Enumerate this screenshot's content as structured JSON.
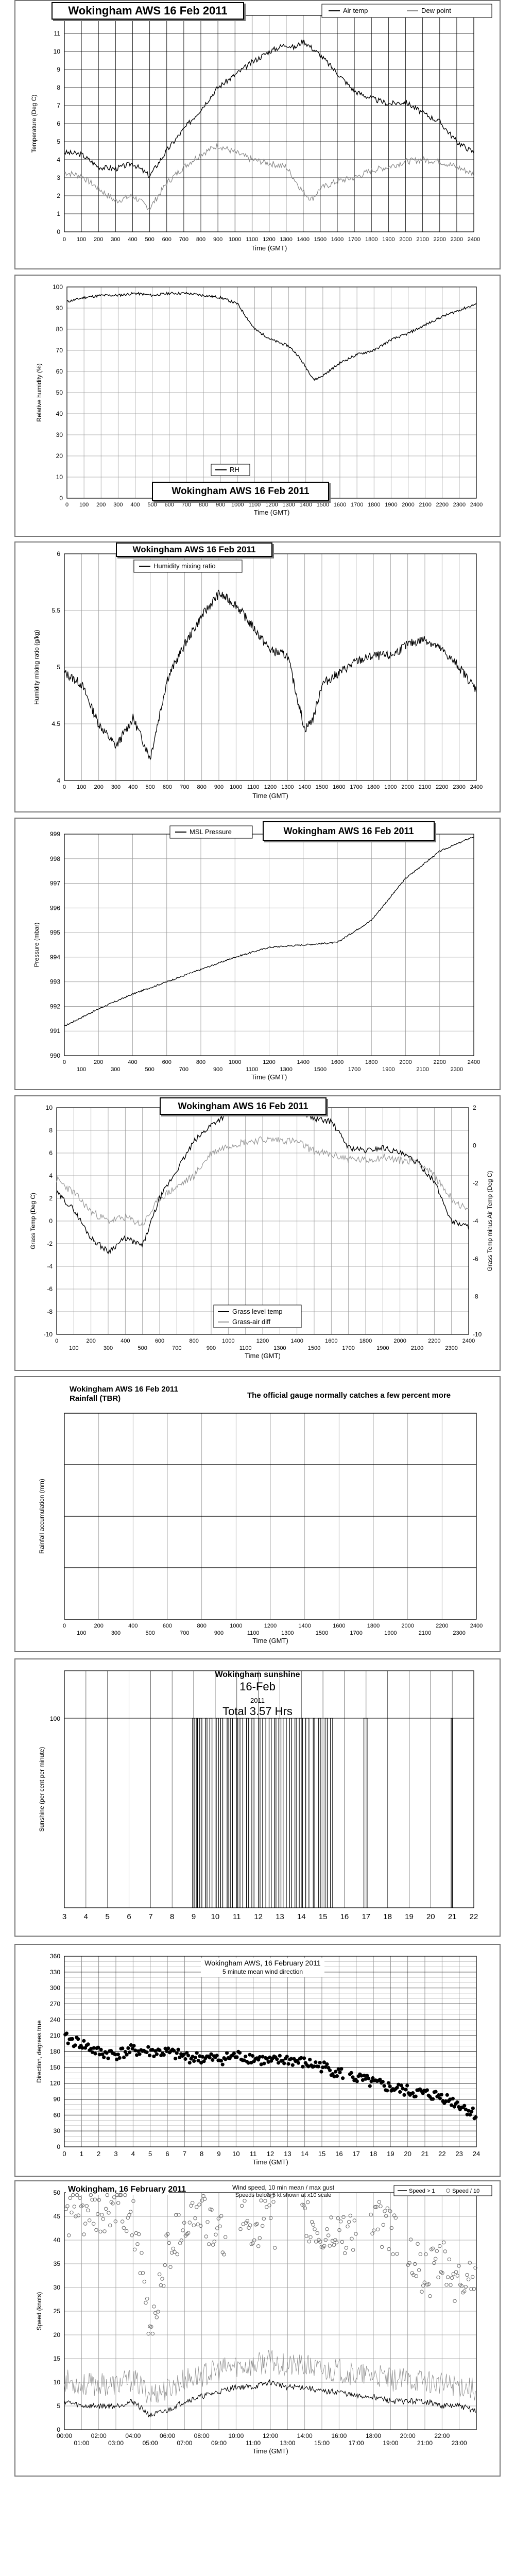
{
  "chart_data": [
    {
      "type": "line",
      "title": "Wokingham AWS 16 Feb 2011",
      "xlabel": "Time (GMT)",
      "ylabel": "Temperature (Deg C)",
      "xlim": [
        0,
        2400
      ],
      "ylim": [
        0,
        12
      ],
      "x_ticks": [
        "0",
        "100",
        "200",
        "300",
        "400",
        "500",
        "600",
        "700",
        "800",
        "900",
        "1000",
        "1100",
        "1200",
        "1300",
        "1400",
        "1500",
        "1600",
        "1700",
        "1800",
        "1900",
        "2000",
        "2100",
        "2200",
        "2300",
        "2400"
      ],
      "y_ticks": [
        "0",
        "1",
        "2",
        "3",
        "4",
        "5",
        "6",
        "7",
        "8",
        "9",
        "10",
        "11",
        "12"
      ],
      "legend": "top-right",
      "series": [
        {
          "name": "Air temp",
          "color": "#000000",
          "x": [
            0,
            100,
            200,
            300,
            400,
            500,
            600,
            700,
            800,
            900,
            1000,
            1100,
            1200,
            1300,
            1350,
            1400,
            1500,
            1600,
            1700,
            1800,
            1900,
            2000,
            2100,
            2200,
            2300,
            2400
          ],
          "y": [
            4.4,
            4.3,
            3.6,
            3.5,
            3.8,
            3.1,
            4.5,
            5.7,
            6.8,
            8.0,
            8.7,
            9.4,
            10.0,
            10.4,
            10.2,
            10.6,
            9.8,
            8.8,
            7.8,
            7.4,
            7.1,
            7.2,
            6.6,
            6.1,
            5.0,
            4.4
          ]
        },
        {
          "name": "Dew point",
          "color": "#888888",
          "x": [
            0,
            100,
            200,
            300,
            400,
            500,
            600,
            700,
            800,
            900,
            1000,
            1100,
            1200,
            1300,
            1400,
            1450,
            1500,
            1600,
            1700,
            1800,
            1900,
            2000,
            2100,
            2200,
            2300,
            2400
          ],
          "y": [
            3.3,
            3.1,
            2.4,
            1.7,
            2.0,
            1.3,
            2.7,
            3.6,
            4.3,
            4.8,
            4.4,
            4.0,
            3.8,
            3.6,
            2.2,
            1.8,
            2.4,
            2.8,
            3.0,
            3.4,
            3.6,
            3.9,
            4.0,
            3.9,
            3.6,
            3.2
          ]
        }
      ]
    },
    {
      "type": "line",
      "title": "Wokingham AWS 16 Feb 2011",
      "xlabel": "Time (GMT)",
      "ylabel": "Relative humidity (%)",
      "xlim": [
        0,
        2400
      ],
      "ylim": [
        0,
        100
      ],
      "x_ticks": [
        "0",
        "100",
        "200",
        "300",
        "400",
        "500",
        "600",
        "700",
        "800",
        "900",
        "1000",
        "1100",
        "1200",
        "1300",
        "1400",
        "1500",
        "1600",
        "1700",
        "1800",
        "1900",
        "2000",
        "2100",
        "2200",
        "2300",
        "2400"
      ],
      "y_ticks": [
        "0",
        "10",
        "20",
        "30",
        "40",
        "50",
        "60",
        "70",
        "80",
        "90",
        "100"
      ],
      "legend": "bottom-left",
      "series": [
        {
          "name": "RH",
          "color": "#000000",
          "x": [
            0,
            100,
            200,
            300,
            400,
            500,
            600,
            700,
            800,
            900,
            1000,
            1100,
            1200,
            1300,
            1350,
            1400,
            1450,
            1500,
            1600,
            1700,
            1800,
            1900,
            2000,
            2100,
            2200,
            2300,
            2400
          ],
          "y": [
            93,
            95,
            96,
            96,
            97,
            96,
            97,
            97,
            96,
            95,
            92,
            80,
            75,
            72,
            68,
            62,
            56,
            58,
            64,
            68,
            70,
            75,
            78,
            82,
            86,
            89,
            92
          ]
        }
      ]
    },
    {
      "type": "line",
      "title": "Wokingham AWS 16 Feb 2011",
      "xlabel": "Time (GMT)",
      "ylabel": "Humidity mixing ratio (g/kg)",
      "xlim": [
        0,
        2400
      ],
      "ylim": [
        4,
        6
      ],
      "x_ticks": [
        "0",
        "100",
        "200",
        "300",
        "400",
        "500",
        "600",
        "700",
        "800",
        "900",
        "1000",
        "1100",
        "1200",
        "1300",
        "1400",
        "1500",
        "1600",
        "1700",
        "1800",
        "1900",
        "2000",
        "2100",
        "2200",
        "2300",
        "2400"
      ],
      "y_ticks": [
        "4",
        "4.5",
        "5",
        "5.5",
        "6"
      ],
      "y_tick_values": [
        4,
        4.5,
        5,
        5.5,
        6
      ],
      "legend": "top-left",
      "series": [
        {
          "name": "Humidity mixing ratio",
          "color": "#000000",
          "x": [
            0,
            100,
            200,
            300,
            400,
            500,
            600,
            700,
            800,
            900,
            1000,
            1100,
            1200,
            1300,
            1400,
            1450,
            1500,
            1600,
            1700,
            1800,
            1900,
            2000,
            2100,
            2200,
            2300,
            2400
          ],
          "y": [
            4.95,
            4.85,
            4.5,
            4.3,
            4.55,
            4.2,
            4.9,
            5.2,
            5.45,
            5.65,
            5.55,
            5.35,
            5.15,
            5.1,
            4.45,
            4.55,
            4.85,
            4.95,
            5.05,
            5.1,
            5.1,
            5.2,
            5.25,
            5.15,
            5.0,
            4.8
          ]
        }
      ]
    },
    {
      "type": "line",
      "title": "Wokingham AWS 16 Feb 2011",
      "xlabel": "Time (GMT)",
      "ylabel": "Pressure (mbar)",
      "xlim": [
        0,
        2400
      ],
      "ylim": [
        990,
        999
      ],
      "x_ticks_major": [
        "0",
        "200",
        "400",
        "600",
        "800",
        "1000",
        "1200",
        "1400",
        "1600",
        "1800",
        "2000",
        "2200",
        "2400"
      ],
      "x_ticks_minor": [
        "100",
        "300",
        "500",
        "700",
        "900",
        "1100",
        "1300",
        "1500",
        "1700",
        "1900",
        "2100",
        "2300"
      ],
      "y_ticks": [
        "990",
        "991",
        "992",
        "993",
        "994",
        "995",
        "996",
        "997",
        "998",
        "999"
      ],
      "legend": "top-left",
      "series": [
        {
          "name": "MSL Pressure",
          "color": "#000000",
          "x": [
            0,
            200,
            400,
            600,
            800,
            1000,
            1200,
            1400,
            1600,
            1800,
            2000,
            2200,
            2400
          ],
          "y": [
            991.2,
            991.9,
            992.5,
            993.0,
            993.5,
            994.0,
            994.4,
            994.5,
            994.6,
            995.5,
            997.2,
            998.3,
            998.9
          ]
        }
      ]
    },
    {
      "type": "line",
      "title": "Wokingham AWS 16 Feb 2011",
      "xlabel": "Time (GMT)",
      "ylabel": "Grass Temp (Deg C)",
      "y2label": "Grass Temp minus Air Temp (Deg C)",
      "xlim": [
        0,
        2400
      ],
      "ylim": [
        -10,
        10
      ],
      "y2lim": [
        -10,
        2
      ],
      "x_ticks_major": [
        "0",
        "200",
        "400",
        "600",
        "800",
        "1000",
        "1200",
        "1400",
        "1600",
        "1800",
        "2000",
        "2200",
        "2400"
      ],
      "x_ticks_minor": [
        "100",
        "300",
        "500",
        "700",
        "900",
        "1100",
        "1300",
        "1500",
        "1700",
        "1900",
        "2100",
        "2300"
      ],
      "y_ticks": [
        "-10",
        "-8",
        "-6",
        "-4",
        "-2",
        "0",
        "2",
        "4",
        "6",
        "8",
        "10"
      ],
      "y2_ticks": [
        "-10",
        "-8",
        "-6",
        "-4",
        "-2",
        "0",
        "2"
      ],
      "legend": "bottom-right",
      "series": [
        {
          "name": "Grass level temp",
          "color": "#000000",
          "axis": "left",
          "x": [
            0,
            100,
            200,
            300,
            400,
            500,
            600,
            700,
            800,
            900,
            1000,
            1100,
            1200,
            1300,
            1400,
            1500,
            1600,
            1700,
            1800,
            1900,
            2000,
            2100,
            2200,
            2300,
            2400
          ],
          "y": [
            2.5,
            1.0,
            -1.5,
            -2.7,
            -1.5,
            -2.2,
            2.0,
            4.5,
            7.0,
            8.5,
            9.5,
            10.0,
            10.0,
            10.0,
            10.0,
            9.0,
            8.8,
            6.5,
            6.2,
            6.5,
            6.0,
            5.2,
            3.5,
            0.0,
            -0.5
          ]
        },
        {
          "name": "Grass-air diff",
          "color": "#999999",
          "axis": "right",
          "x": [
            0,
            100,
            200,
            300,
            400,
            500,
            600,
            700,
            800,
            900,
            1000,
            1100,
            1200,
            1300,
            1400,
            1500,
            1600,
            1700,
            1800,
            1900,
            2000,
            2100,
            2200,
            2300,
            2400
          ],
          "y": [
            -1.8,
            -2.5,
            -3.5,
            -4.0,
            -3.8,
            -4.2,
            -2.8,
            -2.2,
            -1.6,
            -0.4,
            0.0,
            0.2,
            0.3,
            0.3,
            0.2,
            -0.3,
            -0.5,
            -0.7,
            -0.8,
            -0.6,
            -0.8,
            -0.8,
            -1.6,
            -2.8,
            -3.5
          ]
        }
      ]
    },
    {
      "type": "line",
      "title": "Wokingham AWS 16 Feb 2011",
      "subtitle": "Rainfall (TBR)",
      "annotation": "The official gauge normally catches a few percent more",
      "xlabel": "Time (GMT)",
      "ylabel": "Rainfall accumulation (mm)",
      "xlim": [
        0,
        2400
      ],
      "y_gridlines": 4,
      "x_ticks_major": [
        "0",
        "200",
        "400",
        "600",
        "800",
        "1000",
        "1200",
        "1400",
        "1600",
        "1800",
        "2000",
        "2200",
        "2400"
      ],
      "x_ticks_minor": [
        "100",
        "300",
        "500",
        "700",
        "900",
        "1100",
        "1300",
        "1500",
        "1700",
        "1900",
        "2100",
        "2300"
      ],
      "series": []
    },
    {
      "type": "line",
      "title": "Wokingham sunshine",
      "subtitle": "16-Feb",
      "year": "2011",
      "total": "Total 3.57 Hrs",
      "ylabel": "Sunshine (per cent per minute)",
      "xlim": [
        3,
        22
      ],
      "ylim": [
        0,
        100
      ],
      "x_ticks": [
        "3",
        "4",
        "5",
        "6",
        "7",
        "8",
        "9",
        "10",
        "11",
        "12",
        "13",
        "14",
        "15",
        "16",
        "17",
        "18",
        "19",
        "20",
        "21",
        "22"
      ],
      "y_ticks": [
        "100"
      ],
      "sun_periods_hours": [
        [
          8.95,
          9.05
        ],
        [
          9.12,
          9.18
        ],
        [
          9.28,
          9.38
        ],
        [
          9.55,
          9.62
        ],
        [
          9.75,
          9.85
        ],
        [
          10.05,
          10.15
        ],
        [
          10.25,
          10.35
        ],
        [
          10.55,
          10.6
        ],
        [
          10.7,
          10.8
        ],
        [
          11.0,
          11.05
        ],
        [
          11.15,
          11.28
        ],
        [
          11.45,
          11.55
        ],
        [
          11.7,
          11.8
        ],
        [
          12.0,
          12.08
        ],
        [
          12.2,
          12.35
        ],
        [
          12.5,
          12.6
        ],
        [
          12.75,
          12.82
        ],
        [
          12.95,
          13.05
        ],
        [
          13.15,
          13.3
        ],
        [
          13.45,
          13.55
        ],
        [
          13.7,
          13.78
        ],
        [
          13.9,
          14.05
        ],
        [
          14.2,
          14.35
        ],
        [
          14.55,
          14.62
        ],
        [
          14.8,
          14.9
        ],
        [
          15.1,
          15.2
        ],
        [
          15.35,
          15.45
        ],
        [
          16.9,
          17.05
        ],
        [
          20.95,
          21.02
        ]
      ]
    },
    {
      "type": "scatter",
      "title": "Wokingham AWS,  16 February 2011",
      "subtitle": "5 minute mean wind direction",
      "xlabel": "Time (GMT)",
      "ylabel": "Direction, degrees true",
      "xlim": [
        0,
        24
      ],
      "ylim": [
        0,
        360
      ],
      "x_ticks": [
        "0",
        "1",
        "2",
        "3",
        "4",
        "5",
        "6",
        "7",
        "8",
        "9",
        "10",
        "11",
        "12",
        "13",
        "14",
        "15",
        "16",
        "17",
        "18",
        "19",
        "20",
        "21",
        "22",
        "23",
        "24"
      ],
      "y_ticks": [
        "0",
        "30",
        "60",
        "90",
        "120",
        "150",
        "180",
        "210",
        "240",
        "270",
        "300",
        "330",
        "360"
      ],
      "y_tick_values": [
        0,
        30,
        60,
        90,
        120,
        150,
        180,
        210,
        240,
        270,
        300,
        330,
        360
      ],
      "series": [
        {
          "name": "",
          "color": "#000000",
          "x": [
            0,
            1,
            2,
            3,
            4,
            5,
            6,
            7,
            8,
            9,
            10,
            11,
            12,
            13,
            14,
            15,
            16,
            17,
            18,
            19,
            20,
            21,
            22,
            23,
            24
          ],
          "y": [
            205,
            195,
            178,
            175,
            182,
            180,
            178,
            170,
            168,
            165,
            172,
            168,
            160,
            165,
            158,
            152,
            140,
            130,
            120,
            112,
            105,
            100,
            95,
            80,
            60
          ]
        }
      ]
    },
    {
      "type": "line",
      "title": "Wokingham,  16 February 2011",
      "subtitle": "Wind speed, 10 min mean / max gust",
      "note": "Speeds below 5 kt shown at x10 scale",
      "xlabel": "Time (GMT)",
      "ylabel": "Speed (knots)",
      "xlim": [
        0,
        24
      ],
      "ylim": [
        0,
        50
      ],
      "x_ticks_major": [
        "00:00",
        "02:00",
        "04:00",
        "06:00",
        "08:00",
        "10:00",
        "12:00",
        "14:00",
        "16:00",
        "18:00",
        "20:00",
        "22:00"
      ],
      "x_ticks_minor": [
        "01:00",
        "03:00",
        "05:00",
        "07:00",
        "09:00",
        "11:00",
        "13:00",
        "15:00",
        "17:00",
        "19:00",
        "21:00",
        "23:00"
      ],
      "y_ticks": [
        "0",
        "5",
        "10",
        "15",
        "20",
        "25",
        "30",
        "35",
        "40",
        "45",
        "50"
      ],
      "legend": "top-right",
      "series": [
        {
          "name": "Speed > 1",
          "color": "#000000",
          "x": [
            0,
            1,
            2,
            3,
            4,
            5,
            6,
            7,
            8,
            9,
            10,
            11,
            12,
            13,
            14,
            15,
            16,
            17,
            18,
            19,
            20,
            21,
            22,
            23,
            24
          ],
          "y": [
            6,
            5,
            5,
            5,
            6,
            3,
            4,
            6,
            7,
            8,
            9,
            9,
            10,
            9,
            9,
            8,
            8,
            7,
            7,
            6,
            6,
            6,
            5,
            5,
            4
          ]
        },
        {
          "name": "Speed / 10",
          "color": "#666666",
          "x": [
            0,
            1,
            2,
            3,
            4,
            5,
            6,
            7,
            8,
            9,
            10,
            11,
            12,
            13,
            14,
            15,
            16,
            17,
            18,
            19,
            20,
            21,
            22,
            23,
            24
          ],
          "y": [
            45,
            46,
            44,
            47,
            45,
            20,
            38,
            44,
            46,
            40,
            44,
            43,
            45,
            38,
            44,
            40,
            42,
            42,
            44,
            42,
            38,
            32,
            35,
            30,
            34
          ]
        }
      ]
    }
  ]
}
